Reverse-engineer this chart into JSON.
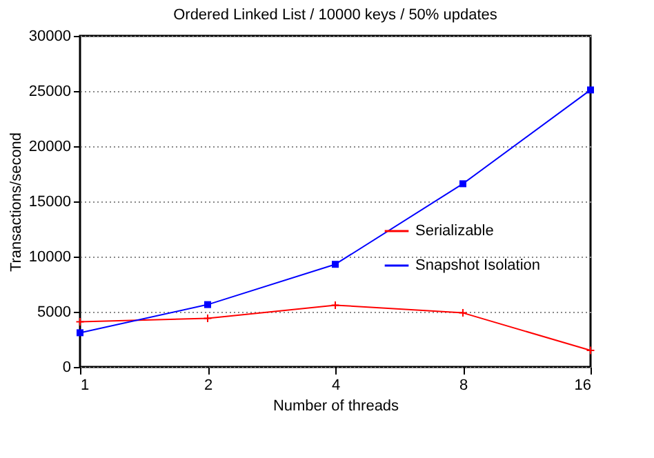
{
  "chart_data": {
    "type": "line",
    "title": "Ordered Linked List / 10000 keys / 50% updates",
    "xlabel": "Number of threads",
    "ylabel": "Transactions/second",
    "x": [
      1,
      2,
      4,
      8,
      16
    ],
    "log": "x",
    "series": [
      {
        "name": "Serializable",
        "color": "#ff0000",
        "marker": "cross",
        "values": [
          4100,
          4400,
          5600,
          4900,
          1500
        ]
      },
      {
        "name": "Snapshot Isolation",
        "color": "#0000ff",
        "marker": "square",
        "values": [
          3100,
          5650,
          9300,
          16600,
          25100
        ]
      }
    ],
    "xlim": [
      1,
      16
    ],
    "xticks": [
      1,
      2,
      4,
      8,
      16
    ],
    "ylim": [
      0,
      30000
    ],
    "yticks": [
      0,
      5000,
      10000,
      15000,
      20000,
      25000,
      30000
    ],
    "grid": "y",
    "legend": "bottom right"
  }
}
